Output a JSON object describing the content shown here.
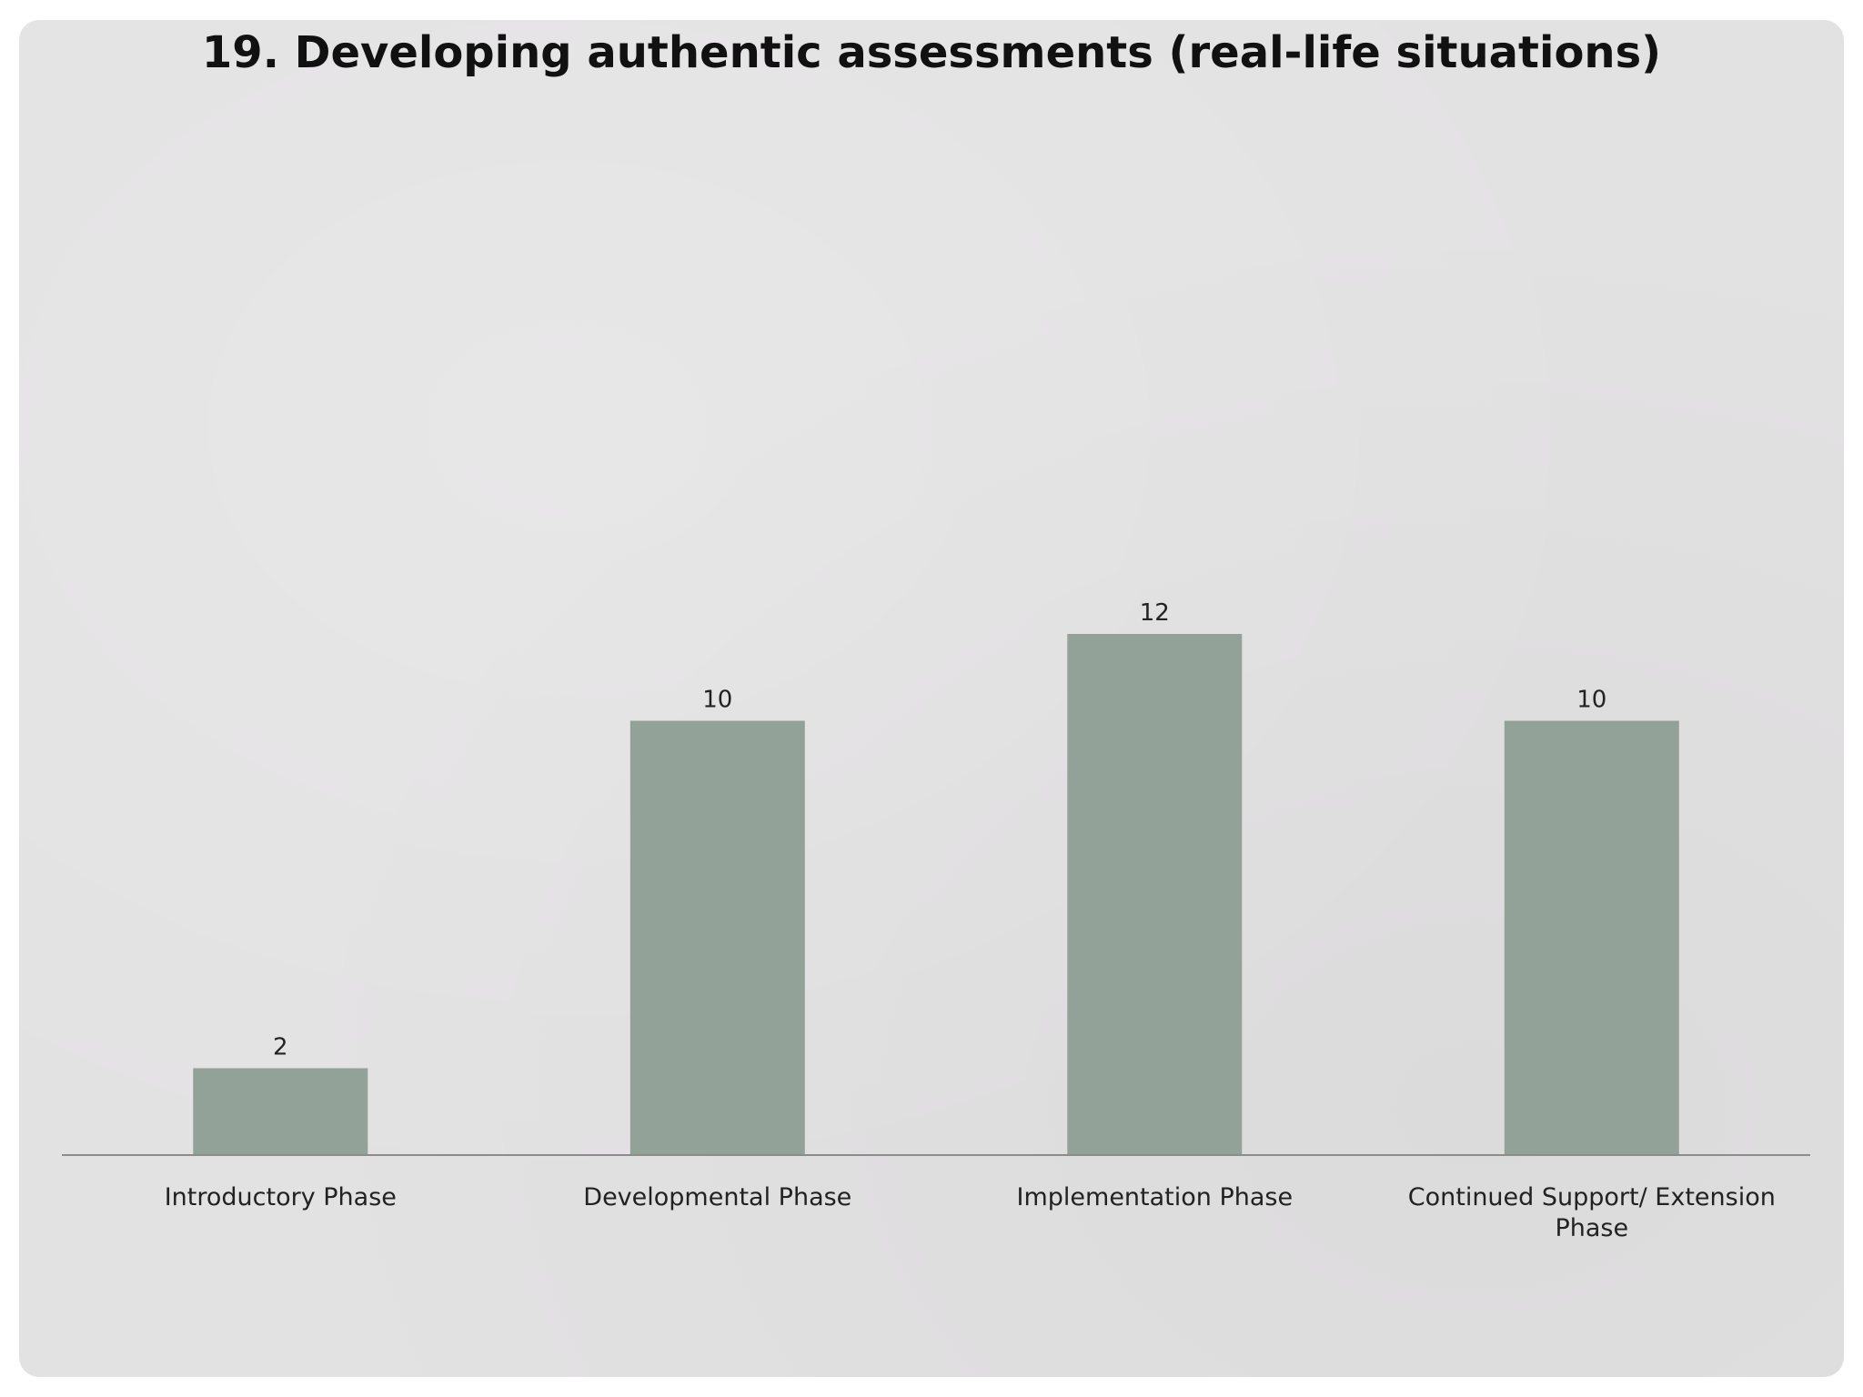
{
  "chart_data": {
    "type": "bar",
    "title": "19. Developing authentic assessments (real-life situations)",
    "categories": [
      [
        "Introductory Phase"
      ],
      [
        "Developmental Phase"
      ],
      [
        "Implementation Phase"
      ],
      [
        "Continued Support/ Extension",
        "Phase"
      ]
    ],
    "values": [
      2,
      10,
      12,
      10
    ],
    "ylim": [
      0,
      24
    ],
    "grid": false,
    "bar_color": "#93a298",
    "axis_color": "#8c8c8c",
    "legend": "none"
  }
}
